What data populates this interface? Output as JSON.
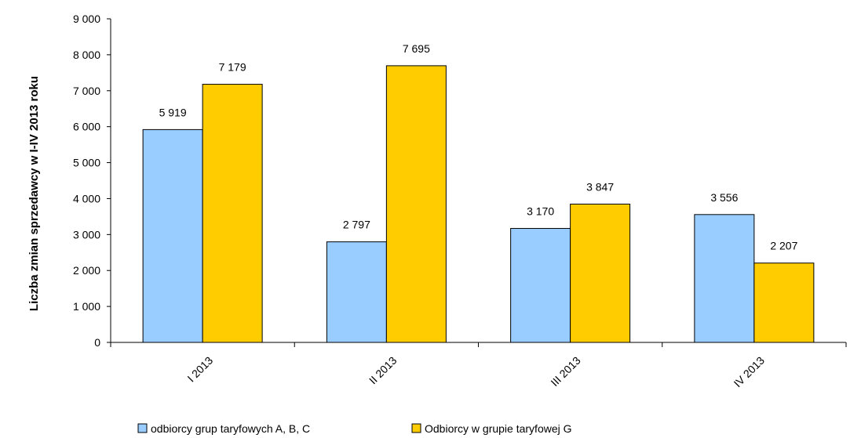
{
  "chart_data": {
    "type": "bar",
    "ylabel": "Liczba zmian sprzedawcy w I-IV 2013 roku",
    "xlabel": "",
    "title": "",
    "categories": [
      "I 2013",
      "II 2013",
      "III 2013",
      "IV 2013"
    ],
    "ylim": [
      0,
      9000
    ],
    "yticks": [
      0,
      1000,
      2000,
      3000,
      4000,
      5000,
      6000,
      7000,
      8000,
      9000
    ],
    "ytick_labels": [
      "0",
      "1 000",
      "2 000",
      "3 000",
      "4 000",
      "5 000",
      "6 000",
      "7 000",
      "8 000",
      "9 000"
    ],
    "grid": false,
    "legend_position": "bottom",
    "series": [
      {
        "name": "odbiorcy grup taryfowych A, B, C",
        "values": [
          5919,
          2797,
          3170,
          3556
        ],
        "value_labels": [
          "5 919",
          "2 797",
          "3 170",
          "3 556"
        ],
        "color": "#99CCFF"
      },
      {
        "name": "Odbiorcy w grupie taryfowej G",
        "values": [
          7179,
          7695,
          3847,
          2207
        ],
        "value_labels": [
          "7 179",
          "7 695",
          "3 847",
          "2 207"
        ],
        "color": "#FFCC00"
      }
    ]
  }
}
